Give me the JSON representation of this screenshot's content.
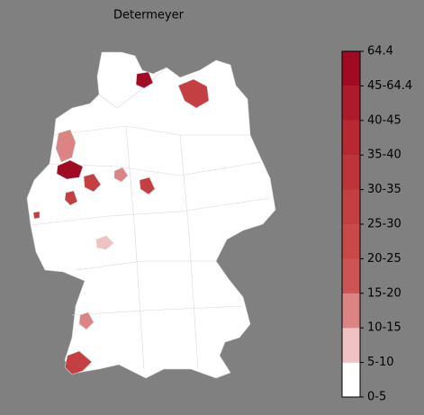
{
  "title": "Determeyer",
  "colorbar": {
    "labels": [
      "0-5",
      "5-10",
      "10-15",
      "15-20",
      "20-25",
      "25-30",
      "30-35",
      "35-40",
      "40-45",
      "45-64.4",
      "64.4"
    ],
    "colors": [
      "#ffffff",
      "#f0c2c2",
      "#dc8484",
      "#cd5454",
      "#c94848",
      "#c43f42",
      "#bf343a",
      "#b82833",
      "#ad1a2b",
      "#a00a22"
    ]
  }
}
